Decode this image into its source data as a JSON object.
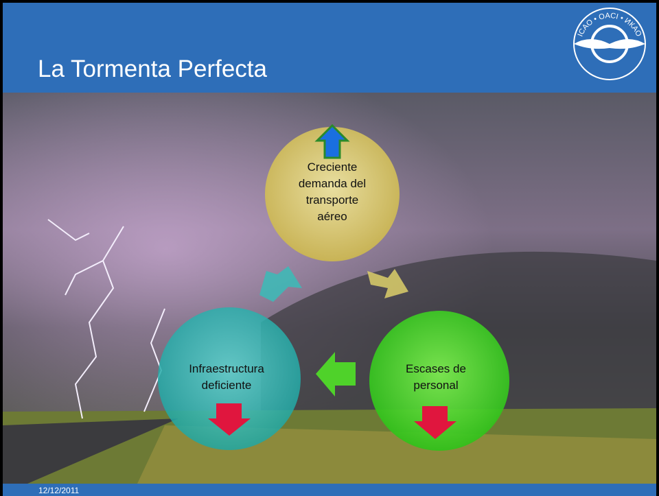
{
  "header": {
    "title": "La Tormenta Perfecta",
    "logo_text": "ICAO • OACI • ИКАО"
  },
  "cycle": [
    {
      "lines": [
        "Creciente",
        "demanda del",
        "transporte",
        "aéreo"
      ]
    },
    {
      "lines": [
        "Escases de",
        "personal"
      ]
    },
    {
      "lines": [
        "Infraestructura",
        "deficiente"
      ]
    }
  ],
  "footer": {
    "date": "12/12/2011"
  }
}
